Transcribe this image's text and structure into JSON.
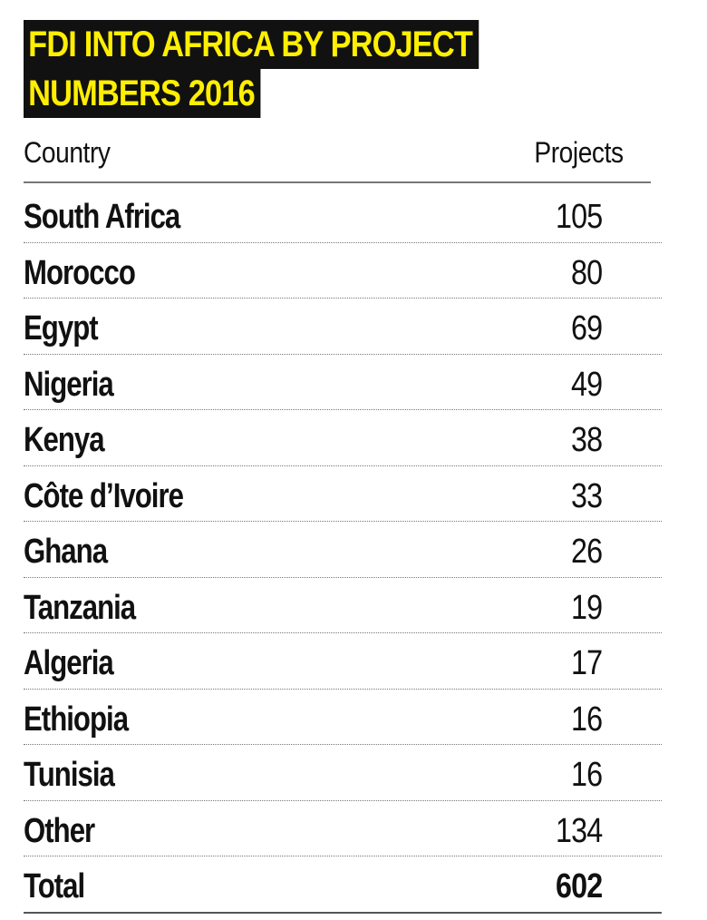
{
  "chart_data": {
    "type": "table",
    "title_lines": [
      "FDI INTO AFRICA BY PROJECT",
      "NUMBERS 2016"
    ],
    "columns": [
      "Country",
      "Projects"
    ],
    "rows": [
      {
        "country": "South Africa",
        "projects": "105"
      },
      {
        "country": "Morocco",
        "projects": "80"
      },
      {
        "country": "Egypt",
        "projects": "69"
      },
      {
        "country": "Nigeria",
        "projects": "49"
      },
      {
        "country": "Kenya",
        "projects": "38"
      },
      {
        "country": "Côte d’Ivoire",
        "projects": "33"
      },
      {
        "country": "Ghana",
        "projects": "26"
      },
      {
        "country": "Tanzania",
        "projects": "19"
      },
      {
        "country": "Algeria",
        "projects": "17"
      },
      {
        "country": "Ethiopia",
        "projects": "16"
      },
      {
        "country": "Tunisia",
        "projects": "16"
      },
      {
        "country": "Other",
        "projects": "134"
      }
    ],
    "total": {
      "label": "Total",
      "projects": "602"
    },
    "colors": {
      "title_text": "#ffef00",
      "title_background": "#111111"
    }
  }
}
